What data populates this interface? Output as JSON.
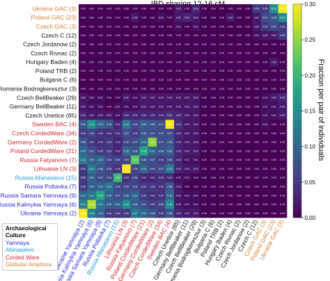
{
  "chart_data": {
    "type": "heatmap",
    "title": "IBD sharing 12-16 cM",
    "colorbar": {
      "label": "Fraction per pair of individuals",
      "ticks": [
        "0.00",
        "0.05",
        "0.10",
        "0.15",
        "0.20",
        "0.25",
        "0.30"
      ],
      "range": [
        0,
        0.3
      ],
      "colormap": "viridis"
    },
    "groups": {
      "Yamnaya": "#1e2bd0",
      "Afanasievo": "#1a9bd1",
      "Corded Ware": "#d2262c",
      "Globular Amphora": "#cf7f31",
      "Other": "#111111"
    },
    "rows": [
      {
        "label": "Ukraine GAC (3)",
        "group": "Globular Amphora"
      },
      {
        "label": "Poland GAC (23)",
        "group": "Globular Amphora"
      },
      {
        "label": "Czech GAC (3)",
        "group": "Globular Amphora"
      },
      {
        "label": "Czech C (12)",
        "group": "Other"
      },
      {
        "label": "Czech Jordanow (2)",
        "group": "Other"
      },
      {
        "label": "Czech Rivnac (2)",
        "group": "Other"
      },
      {
        "label": "Hungary Baden (4)",
        "group": "Other"
      },
      {
        "label": "Poland TRB (2)",
        "group": "Other"
      },
      {
        "label": "Bulgaria C (6)",
        "group": "Other"
      },
      {
        "label": "Romania Bodrogkeresztur (3)",
        "group": "Other"
      },
      {
        "label": "Czech BellBeaker (29)",
        "group": "Other"
      },
      {
        "label": "Germany BellBeaker (11)",
        "group": "Other"
      },
      {
        "label": "Czech Unetice (85)",
        "group": "Other"
      },
      {
        "label": "Sweden BAC (4)",
        "group": "Corded Ware"
      },
      {
        "label": "Czech CordedWare (34)",
        "group": "Corded Ware"
      },
      {
        "label": "Germany CordedWare (2)",
        "group": "Corded Ware"
      },
      {
        "label": "Poland CordedWare (21)",
        "group": "Corded Ware"
      },
      {
        "label": "Russia Fatyanovo (7)",
        "group": "Corded Ware"
      },
      {
        "label": "Lithuania LN (3)",
        "group": "Corded Ware"
      },
      {
        "label": "Russia Afanasievo (15)",
        "group": "Afanasievo"
      },
      {
        "label": "Russia Poltavka (7)",
        "group": "Yamnaya"
      },
      {
        "label": "Russia Samara Yamnaya (9)",
        "group": "Yamnaya"
      },
      {
        "label": "Russia Kalmykia Yamnaya (6)",
        "group": "Yamnaya"
      },
      {
        "label": "Ukraine Yamnaya (2)",
        "group": "Yamnaya"
      }
    ],
    "columns": [
      {
        "label": "Ukraine Yamnaya (2)",
        "group": "Yamnaya"
      },
      {
        "label": "Russia Kalmykia Yamnaya (6)",
        "group": "Yamnaya"
      },
      {
        "label": "Russia Samara Yamnaya (9)",
        "group": "Yamnaya"
      },
      {
        "label": "Russia Poltavka (7)",
        "group": "Yamnaya"
      },
      {
        "label": "Russia Afanasievo (15)",
        "group": "Afanasievo"
      },
      {
        "label": "Lithuania LN (3)",
        "group": "Corded Ware"
      },
      {
        "label": "Russia Fatyanovo (7)",
        "group": "Corded Ware"
      },
      {
        "label": "Poland CordedWare (21)",
        "group": "Corded Ware"
      },
      {
        "label": "Germany CordedWare (2)",
        "group": "Corded Ware"
      },
      {
        "label": "Czech CordedWare (34)",
        "group": "Corded Ware"
      },
      {
        "label": "Sweden BAC (4)",
        "group": "Corded Ware"
      },
      {
        "label": "Czech Unetice (85)",
        "group": "Other"
      },
      {
        "label": "Germany BellBeaker (11)",
        "group": "Other"
      },
      {
        "label": "Czech BellBeaker (29)",
        "group": "Other"
      },
      {
        "label": "Romania Bodrogkeresztur (3)",
        "group": "Other"
      },
      {
        "label": "Bulgaria C (6)",
        "group": "Other"
      },
      {
        "label": "Poland TRB (2)",
        "group": "Other"
      },
      {
        "label": "Hungary Baden (4)",
        "group": "Other"
      },
      {
        "label": "Czech Rivnac (2)",
        "group": "Other"
      },
      {
        "label": "Czech Jordanow (2)",
        "group": "Other"
      },
      {
        "label": "Czech C (12)",
        "group": "Other"
      },
      {
        "label": "Czech GAC (3)",
        "group": "Globular Amphora"
      },
      {
        "label": "Poland GAC (23)",
        "group": "Globular Amphora"
      },
      {
        "label": "Ukraine GAC (3)",
        "group": "Globular Amphora"
      }
    ],
    "values": [
      [
        0.0,
        0.0,
        0.0,
        0.0,
        0.0,
        0.0,
        0.0,
        0.0,
        0.0,
        0.0,
        0.0,
        0.02,
        0.0,
        0.03,
        0.0,
        0.0,
        0.0,
        0.0,
        0.0,
        0.0,
        0.05,
        0.05,
        0.15,
        0.3
      ],
      [
        0.0,
        0.0,
        0.0,
        0.0,
        0.0,
        0.0,
        0.02,
        0.0,
        0.0,
        0.01,
        0.0,
        0.02,
        0.03,
        0.02,
        0.0,
        0.0,
        0.0,
        0.02,
        0.0,
        0.0,
        0.02,
        0.07,
        0.08,
        0.15
      ],
      [
        0.0,
        0.0,
        0.0,
        0.0,
        0.0,
        0.0,
        0.0,
        0.0,
        0.0,
        0.0,
        0.0,
        0.01,
        0.0,
        0.01,
        0.0,
        0.0,
        0.0,
        0.0,
        0.0,
        0.0,
        0.02,
        0.05,
        0.07,
        0.05
      ],
      [
        0.0,
        0.0,
        0.0,
        0.0,
        0.0,
        0.0,
        0.0,
        0.0,
        0.0,
        0.0,
        0.0,
        0.0,
        0.0,
        0.0,
        0.0,
        0.0,
        0.0,
        0.0,
        0.0,
        0.0,
        0.01,
        0.02,
        0.02,
        0.05
      ],
      [
        0.0,
        0.0,
        0.0,
        0.0,
        0.0,
        0.0,
        0.0,
        0.0,
        0.0,
        0.0,
        0.0,
        0.0,
        0.0,
        0.0,
        0.0,
        0.0,
        0.0,
        0.0,
        0.0,
        0.0,
        0.0,
        0.0,
        0.0,
        0.0
      ],
      [
        0.0,
        0.0,
        0.0,
        0.0,
        0.0,
        0.0,
        0.0,
        0.0,
        0.0,
        0.0,
        0.0,
        0.0,
        0.0,
        0.0,
        0.0,
        0.0,
        0.0,
        0.0,
        0.0,
        0.0,
        0.0,
        0.0,
        0.0,
        0.0
      ],
      [
        0.0,
        0.0,
        0.0,
        0.0,
        0.0,
        0.0,
        0.0,
        0.0,
        0.0,
        0.0,
        0.0,
        0.0,
        0.0,
        0.0,
        0.0,
        0.0,
        0.0,
        0.0,
        0.0,
        0.0,
        0.0,
        0.0,
        0.02,
        0.0
      ],
      [
        0.0,
        0.0,
        0.0,
        0.0,
        0.0,
        0.0,
        0.0,
        0.0,
        0.0,
        0.0,
        0.0,
        0.0,
        0.0,
        0.0,
        0.0,
        0.0,
        0.0,
        0.0,
        0.0,
        0.0,
        0.0,
        0.0,
        0.0,
        0.0
      ],
      [
        0.0,
        0.0,
        0.0,
        0.0,
        0.0,
        0.0,
        0.0,
        0.0,
        0.0,
        0.0,
        0.0,
        0.0,
        0.0,
        0.0,
        0.0,
        0.0,
        0.0,
        0.0,
        0.0,
        0.0,
        0.0,
        0.0,
        0.0,
        0.0
      ],
      [
        0.0,
        0.0,
        0.0,
        0.0,
        0.0,
        0.0,
        0.0,
        0.0,
        0.0,
        0.0,
        0.0,
        0.0,
        0.0,
        0.0,
        0.0,
        0.0,
        0.0,
        0.0,
        0.0,
        0.0,
        0.0,
        0.0,
        0.0,
        0.0
      ],
      [
        0.02,
        0.01,
        0.01,
        0.0,
        0.0,
        0.02,
        0.01,
        0.02,
        0.02,
        0.02,
        0.02,
        0.02,
        0.02,
        0.02,
        0.0,
        0.0,
        0.0,
        0.0,
        0.0,
        0.0,
        0.0,
        0.01,
        0.02,
        0.03
      ],
      [
        0.02,
        0.01,
        0.01,
        0.0,
        0.01,
        0.01,
        0.01,
        0.02,
        0.02,
        0.02,
        0.02,
        0.02,
        0.02,
        0.02,
        0.0,
        0.0,
        0.0,
        0.0,
        0.0,
        0.0,
        0.0,
        0.01,
        0.01,
        0.02
      ],
      [
        0.03,
        0.02,
        0.02,
        0.02,
        0.01,
        0.03,
        0.03,
        0.03,
        0.03,
        0.03,
        0.04,
        0.03,
        0.02,
        0.02,
        0.0,
        0.0,
        0.0,
        0.0,
        0.0,
        0.0,
        0.0,
        0.01,
        0.01,
        0.02
      ],
      [
        0.08,
        0.15,
        0.1,
        0.08,
        0.03,
        0.12,
        0.06,
        0.09,
        0.08,
        0.07,
        0.5,
        0.04,
        0.02,
        0.02,
        0.0,
        0.0,
        0.0,
        0.0,
        0.0,
        0.0,
        0.0,
        0.01,
        0.0,
        0.0
      ],
      [
        0.05,
        0.06,
        0.04,
        0.04,
        0.04,
        0.07,
        0.05,
        0.08,
        0.07,
        0.07,
        0.07,
        0.03,
        0.02,
        0.02,
        0.0,
        0.0,
        0.0,
        0.0,
        0.0,
        0.0,
        0.0,
        0.0,
        0.0,
        0.0
      ],
      [
        0.08,
        0.05,
        0.04,
        0.05,
        0.03,
        0.06,
        0.07,
        0.1,
        0.25,
        0.07,
        0.08,
        0.03,
        0.02,
        0.02,
        0.0,
        0.0,
        0.0,
        0.0,
        0.0,
        0.0,
        0.0,
        0.0,
        0.0,
        0.0
      ],
      [
        0.1,
        0.07,
        0.05,
        0.05,
        0.03,
        0.1,
        0.08,
        0.18,
        0.1,
        0.08,
        0.09,
        0.03,
        0.02,
        0.02,
        0.0,
        0.0,
        0.0,
        0.0,
        0.0,
        0.0,
        0.0,
        0.0,
        0.0,
        0.0
      ],
      [
        0.12,
        0.09,
        0.1,
        0.06,
        0.06,
        0.06,
        0.22,
        0.08,
        0.07,
        0.05,
        0.06,
        0.03,
        0.01,
        0.01,
        0.0,
        0.0,
        0.0,
        0.0,
        0.0,
        0.0,
        0.0,
        0.0,
        0.0,
        0.0
      ],
      [
        0.05,
        0.12,
        0.08,
        0.06,
        0.04,
        0.33,
        0.06,
        0.1,
        0.06,
        0.07,
        0.12,
        0.03,
        0.02,
        0.02,
        0.0,
        0.0,
        0.0,
        0.0,
        0.0,
        0.0,
        0.0,
        0.0,
        0.0,
        0.0
      ],
      [
        0.05,
        0.09,
        0.07,
        0.06,
        0.2,
        0.04,
        0.06,
        0.03,
        0.03,
        0.04,
        0.03,
        0.01,
        0.01,
        0.0,
        0.0,
        0.0,
        0.0,
        0.0,
        0.0,
        0.0,
        0.0,
        0.0,
        0.0,
        0.0
      ],
      [
        0.05,
        0.09,
        0.09,
        0.12,
        0.06,
        0.06,
        0.06,
        0.05,
        0.05,
        0.04,
        0.08,
        0.02,
        0.0,
        0.0,
        0.0,
        0.0,
        0.0,
        0.0,
        0.0,
        0.0,
        0.0,
        0.0,
        0.0,
        0.0
      ],
      [
        0.1,
        0.12,
        0.18,
        0.09,
        0.07,
        0.08,
        0.1,
        0.05,
        0.04,
        0.04,
        0.1,
        0.02,
        0.01,
        0.01,
        0.0,
        0.0,
        0.0,
        0.0,
        0.0,
        0.0,
        0.0,
        0.0,
        0.0,
        0.0
      ],
      [
        0.13,
        0.26,
        0.12,
        0.09,
        0.09,
        0.15,
        0.09,
        0.07,
        0.05,
        0.06,
        0.15,
        0.02,
        0.01,
        0.01,
        0.0,
        0.0,
        0.0,
        0.0,
        0.0,
        0.0,
        0.0,
        0.0,
        0.0,
        0.0
      ],
      [
        0.33,
        0.13,
        0.1,
        0.05,
        0.05,
        0.05,
        0.12,
        0.1,
        0.08,
        0.05,
        0.08,
        0.03,
        0.02,
        0.02,
        0.0,
        0.0,
        0.0,
        0.0,
        0.0,
        0.0,
        0.0,
        0.0,
        0.0,
        0.0
      ]
    ],
    "legend": {
      "title": "Archaeological Culture",
      "title_lines": [
        "Archaeological",
        "Culture"
      ],
      "entries": [
        {
          "label": "Yamnaya",
          "color": "#1e2bd0"
        },
        {
          "label": "Afanasievo",
          "color": "#1a9bd1"
        },
        {
          "label": "Corded Ware",
          "color": "#d2262c"
        },
        {
          "label": "Globular Amphora",
          "color": "#cf7f31"
        }
      ],
      "placement": "bottom-left"
    }
  }
}
